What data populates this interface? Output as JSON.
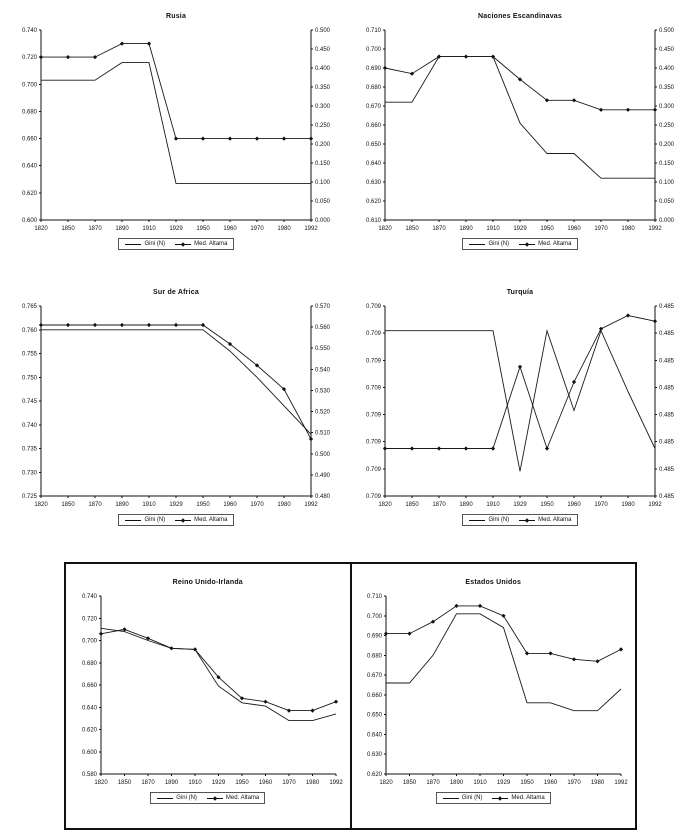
{
  "legend_labels": [
    "Gini (N)",
    "Med. Altama"
  ],
  "chart_data": [
    {
      "type": "line",
      "title": "Rusia",
      "grid": false,
      "legend_position": "bottom",
      "x_categories": [
        "1820",
        "1850",
        "1870",
        "1890",
        "1910",
        "1929",
        "1950",
        "1960",
        "1970",
        "1980",
        "1992"
      ],
      "left_axis": {
        "min": 0.6,
        "max": 0.74,
        "ticks": [
          "0.740",
          "0.720",
          "0.700",
          "0.680",
          "0.660",
          "0.640",
          "0.620",
          "0.600"
        ]
      },
      "right_axis": {
        "ticks": [
          "0.500",
          "0.450",
          "0.400",
          "0.350",
          "0.300",
          "0.250",
          "0.200",
          "0.150",
          "0.100",
          "0.050",
          "0.000"
        ]
      },
      "series": [
        {
          "name": "Gini (N)",
          "marker": "none",
          "values": [
            0.703,
            0.703,
            0.703,
            0.716,
            0.716,
            0.627,
            0.627,
            0.627,
            0.627,
            0.627,
            0.627
          ]
        },
        {
          "name": "Med. Altama",
          "marker": "diamond",
          "values": [
            0.72,
            0.72,
            0.72,
            0.73,
            0.73,
            0.66,
            0.66,
            0.66,
            0.66,
            0.66,
            0.66
          ]
        }
      ]
    },
    {
      "type": "line",
      "title": "Naciones Escandinavas",
      "grid": false,
      "legend_position": "bottom",
      "x_categories": [
        "1820",
        "1850",
        "1870",
        "1890",
        "1910",
        "1929",
        "1950",
        "1960",
        "1970",
        "1980",
        "1992"
      ],
      "left_axis": {
        "min": 0.61,
        "max": 0.71,
        "ticks": [
          "0.710",
          "0.700",
          "0.690",
          "0.680",
          "0.670",
          "0.660",
          "0.650",
          "0.640",
          "0.630",
          "0.620",
          "0.610"
        ]
      },
      "right_axis": {
        "ticks": [
          "0.500",
          "0.450",
          "0.400",
          "0.350",
          "0.300",
          "0.250",
          "0.200",
          "0.150",
          "0.100",
          "0.050",
          "0.000"
        ]
      },
      "series": [
        {
          "name": "Gini (N)",
          "marker": "none",
          "values": [
            0.672,
            0.672,
            0.696,
            0.696,
            0.696,
            0.661,
            0.645,
            0.645,
            0.632,
            0.632,
            0.632
          ]
        },
        {
          "name": "Med. Altama",
          "marker": "diamond",
          "values": [
            0.69,
            0.687,
            0.696,
            0.696,
            0.696,
            0.684,
            0.673,
            0.673,
            0.668,
            0.668,
            0.668
          ]
        }
      ]
    },
    {
      "type": "line",
      "title": "Sur de Africa",
      "grid": false,
      "legend_position": "bottom",
      "x_categories": [
        "1820",
        "1850",
        "1870",
        "1890",
        "1910",
        "1929",
        "1950",
        "1960",
        "1970",
        "1980",
        "1992"
      ],
      "left_axis": {
        "min": 0.725,
        "max": 0.765,
        "ticks": [
          "0.765",
          "0.760",
          "0.755",
          "0.750",
          "0.745",
          "0.740",
          "0.735",
          "0.730",
          "0.725"
        ]
      },
      "right_axis": {
        "ticks": [
          "0.570",
          "0.560",
          "0.550",
          "0.540",
          "0.530",
          "0.520",
          "0.510",
          "0.500",
          "0.490",
          "0.480"
        ]
      },
      "series": [
        {
          "name": "Gini (N)",
          "marker": "none",
          "values": [
            0.76,
            0.76,
            0.76,
            0.76,
            0.76,
            0.76,
            0.76,
            0.7555,
            0.75,
            0.744,
            0.738
          ]
        },
        {
          "name": "Med. Altama",
          "marker": "diamond",
          "values": [
            0.761,
            0.761,
            0.761,
            0.761,
            0.761,
            0.761,
            0.761,
            0.757,
            0.7525,
            0.7475,
            0.737
          ]
        }
      ]
    },
    {
      "type": "line",
      "title": "Turquía",
      "grid": false,
      "legend_position": "bottom",
      "x_categories": [
        "1820",
        "1850",
        "1870",
        "1890",
        "1910",
        "1929",
        "1950",
        "1960",
        "1970",
        "1980",
        "1992"
      ],
      "left_axis": {
        "min": 0,
        "max": 1,
        "ticks": [
          "0.709",
          "0.709",
          "0.709",
          "0.709",
          "0.709",
          "0.709",
          "0.709",
          "0.709"
        ]
      },
      "right_axis": {
        "ticks": [
          "0.485",
          "0.485",
          "0.485",
          "0.485",
          "0.485",
          "0.485",
          "0.485",
          "0.485"
        ]
      },
      "series": [
        {
          "name": "Gini (N)",
          "marker": "none",
          "values": [
            0.87,
            0.87,
            0.87,
            0.87,
            0.87,
            0.13,
            0.87,
            0.45,
            0.87,
            0.55,
            0.25
          ]
        },
        {
          "name": "Med. Altama",
          "marker": "diamond",
          "values": [
            0.25,
            0.25,
            0.25,
            0.25,
            0.25,
            0.68,
            0.25,
            0.6,
            0.88,
            0.95,
            0.92
          ]
        }
      ]
    },
    {
      "type": "line",
      "title": "Reino Unido-Irlanda",
      "grid": false,
      "legend_position": "bottom",
      "x_categories": [
        "1820",
        "1850",
        "1870",
        "1890",
        "1910",
        "1929",
        "1950",
        "1960",
        "1970",
        "1980",
        "1992"
      ],
      "left_axis": {
        "min": 0.58,
        "max": 0.74,
        "ticks": [
          "0.740",
          "0.720",
          "0.700",
          "0.680",
          "0.660",
          "0.640",
          "0.620",
          "0.600",
          "0.580"
        ]
      },
      "right_axis": null,
      "series": [
        {
          "name": "Gini (N)",
          "marker": "none",
          "values": [
            0.711,
            0.708,
            0.7,
            0.693,
            0.692,
            0.659,
            0.644,
            0.641,
            0.628,
            0.628,
            0.634
          ]
        },
        {
          "name": "Med. Altama",
          "marker": "diamond",
          "values": [
            0.706,
            0.71,
            0.702,
            0.693,
            0.692,
            0.667,
            0.648,
            0.645,
            0.637,
            0.637,
            0.645
          ]
        }
      ]
    },
    {
      "type": "line",
      "title": "Estados Unidos",
      "grid": false,
      "legend_position": "bottom",
      "x_categories": [
        "1820",
        "1850",
        "1870",
        "1890",
        "1910",
        "1929",
        "1950",
        "1960",
        "1970",
        "1980",
        "1992"
      ],
      "left_axis": {
        "min": 0.62,
        "max": 0.71,
        "ticks": [
          "0.710",
          "0.700",
          "0.690",
          "0.680",
          "0.670",
          "0.660",
          "0.650",
          "0.640",
          "0.630",
          "0.620"
        ]
      },
      "right_axis": null,
      "series": [
        {
          "name": "Gini (N)",
          "marker": "none",
          "values": [
            0.666,
            0.666,
            0.68,
            0.701,
            0.701,
            0.694,
            0.656,
            0.656,
            0.652,
            0.652,
            0.663
          ]
        },
        {
          "name": "Med. Altama",
          "marker": "diamond",
          "values": [
            0.691,
            0.691,
            0.697,
            0.705,
            0.705,
            0.7,
            0.681,
            0.681,
            0.678,
            0.677,
            0.683
          ]
        }
      ]
    }
  ]
}
